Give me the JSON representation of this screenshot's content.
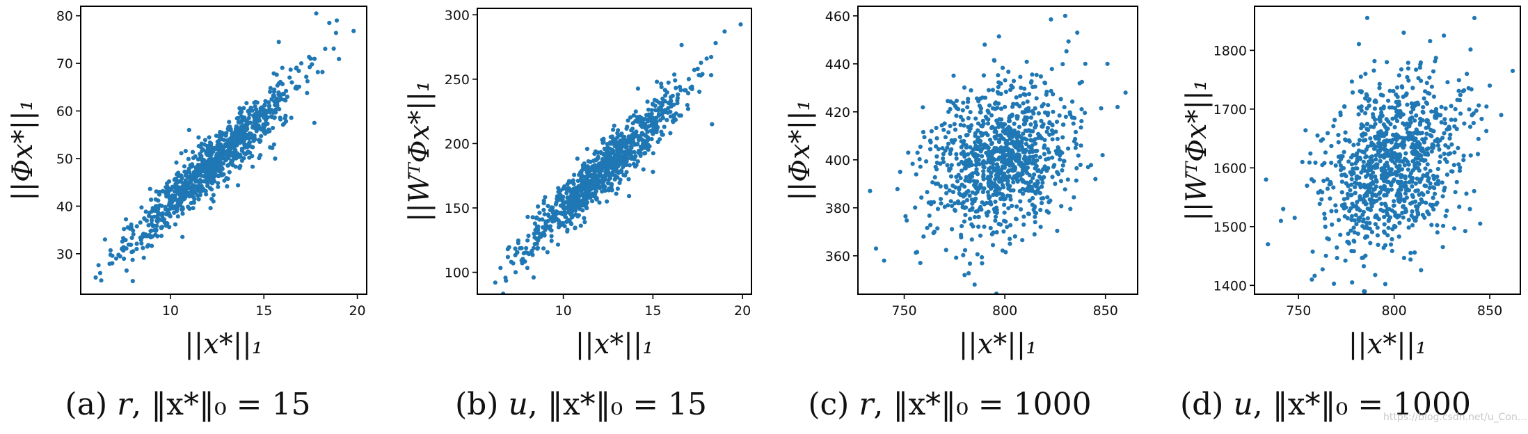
{
  "colors": {
    "point": "#1f77b4",
    "axis": "#000000",
    "text": "#111111"
  },
  "captions": [
    {
      "letter": "(a)",
      "var": "r",
      "norm": "‖x*‖₀ = 15"
    },
    {
      "letter": "(b)",
      "var": "u",
      "norm": "‖x*‖₀ = 15"
    },
    {
      "letter": "(c)",
      "var": "r",
      "norm": "‖x*‖₀ = 1000"
    },
    {
      "letter": "(d)",
      "var": "u",
      "norm": "‖x*‖₀ = 1000"
    }
  ],
  "watermark": "https://blog.csdn.net/u_Con...",
  "chart_data": [
    {
      "type": "scatter",
      "title": "",
      "xlabel": "||x*||₁",
      "ylabel": "||Φx*||₁",
      "xlim": [
        5.2,
        20.5
      ],
      "ylim": [
        21.5,
        82
      ],
      "xticks": [
        10,
        15,
        20
      ],
      "yticks": [
        30,
        40,
        50,
        60,
        70,
        80
      ],
      "grid": false,
      "n_points": 1000,
      "trend": {
        "x": [
          6,
          10,
          15,
          20
        ],
        "y": [
          26,
          41,
          59,
          77
        ]
      },
      "points": [
        [
          6.0,
          25.0
        ],
        [
          6.3,
          24.4
        ],
        [
          6.5,
          33.0
        ],
        [
          7.1,
          29.0
        ],
        [
          7.4,
          31.0
        ],
        [
          8.0,
          30.5
        ],
        [
          8.5,
          33.5
        ],
        [
          9.0,
          37.0
        ],
        [
          9.5,
          35.5
        ],
        [
          10.0,
          41.0
        ],
        [
          10.5,
          43.0
        ],
        [
          11.0,
          45.0
        ],
        [
          11.5,
          48.0
        ],
        [
          12.0,
          47.0
        ],
        [
          12.5,
          51.0
        ],
        [
          13.0,
          50.0
        ],
        [
          13.5,
          55.0
        ],
        [
          14.0,
          57.0
        ],
        [
          14.5,
          58.0
        ],
        [
          15.0,
          60.0
        ],
        [
          15.5,
          63.0
        ],
        [
          15.8,
          74.5
        ],
        [
          16.5,
          66.0
        ],
        [
          17.0,
          70.0
        ],
        [
          17.5,
          71.0
        ],
        [
          17.8,
          80.5
        ],
        [
          18.5,
          78.5
        ],
        [
          18.9,
          79.0
        ],
        [
          19.8,
          76.8
        ],
        [
          17.7,
          57.5
        ],
        [
          11.0,
          56.0
        ],
        [
          15.6,
          50.0
        ]
      ]
    },
    {
      "type": "scatter",
      "title": "",
      "xlabel": "||x*||₁",
      "ylabel": "||WᵀΦx*||₁",
      "xlim": [
        5.2,
        20.5
      ],
      "ylim": [
        83,
        305
      ],
      "xticks": [
        10,
        15,
        20
      ],
      "yticks": [
        100,
        150,
        200,
        250,
        300
      ],
      "grid": false,
      "n_points": 1000,
      "trend": {
        "x": [
          6,
          10,
          15,
          20
        ],
        "y": [
          96,
          150,
          215,
          282
        ]
      },
      "points": [
        [
          6.2,
          92.0
        ],
        [
          6.8,
          93.5
        ],
        [
          6.9,
          118.0
        ],
        [
          7.2,
          107.0
        ],
        [
          8.0,
          115.0
        ],
        [
          8.5,
          126.0
        ],
        [
          9.0,
          135.0
        ],
        [
          9.5,
          140.0
        ],
        [
          10.0,
          150.0
        ],
        [
          10.5,
          158.0
        ],
        [
          11.0,
          163.0
        ],
        [
          11.5,
          170.0
        ],
        [
          12.0,
          178.0
        ],
        [
          12.5,
          182.0
        ],
        [
          13.0,
          192.0
        ],
        [
          13.5,
          197.0
        ],
        [
          14.0,
          206.0
        ],
        [
          14.5,
          215.0
        ],
        [
          15.0,
          220.0
        ],
        [
          15.5,
          226.0
        ],
        [
          16.0,
          236.0
        ],
        [
          16.5,
          244.0
        ],
        [
          17.0,
          250.0
        ],
        [
          17.5,
          258.0
        ],
        [
          18.0,
          266.0
        ],
        [
          18.5,
          278.0
        ],
        [
          19.0,
          287.0
        ],
        [
          19.9,
          292.5
        ],
        [
          16.6,
          276.5
        ],
        [
          18.3,
          215.0
        ],
        [
          15.0,
          178.0
        ]
      ]
    },
    {
      "type": "scatter",
      "title": "",
      "xlabel": "||x*||₁",
      "ylabel": "||Φx*||₁",
      "xlim": [
        727,
        866
      ],
      "ylim": [
        344,
        464
      ],
      "xticks": [
        750,
        800,
        850
      ],
      "yticks": [
        360,
        380,
        400,
        420,
        440,
        460
      ],
      "grid": false,
      "n_points": 1000,
      "center": [
        798,
        400
      ],
      "spread": [
        18,
        16
      ],
      "points": [
        [
          733.0,
          387.0
        ],
        [
          736.0,
          363.0
        ],
        [
          740.0,
          358.0
        ],
        [
          748.0,
          395.0
        ],
        [
          752.0,
          403.0
        ],
        [
          758.0,
          357.0
        ],
        [
          765.0,
          370.0
        ],
        [
          772.0,
          420.0
        ],
        [
          780.0,
          352.0
        ],
        [
          785.0,
          348.0
        ],
        [
          790.0,
          448.0
        ],
        [
          795.0,
          400.0
        ],
        [
          800.0,
          405.0
        ],
        [
          805.0,
          397.0
        ],
        [
          810.0,
          415.0
        ],
        [
          815.0,
          378.0
        ],
        [
          820.0,
          432.0
        ],
        [
          825.0,
          390.0
        ],
        [
          830.0,
          460.0
        ],
        [
          836.0,
          453.0
        ],
        [
          840.0,
          440.0
        ],
        [
          845.0,
          392.0
        ],
        [
          851.0,
          440.0
        ],
        [
          856.0,
          422.0
        ],
        [
          860.0,
          428.0
        ]
      ]
    },
    {
      "type": "scatter",
      "title": "",
      "xlabel": "||x*||₁",
      "ylabel": "||WᵀΦx*||₁",
      "xlim": [
        727,
        866
      ],
      "ylim": [
        1385,
        1875
      ],
      "xticks": [
        750,
        800,
        850
      ],
      "yticks": [
        1400,
        1500,
        1600,
        1700,
        1800
      ],
      "grid": false,
      "n_points": 1000,
      "center": [
        798,
        1600
      ],
      "spread": [
        18,
        72
      ],
      "points": [
        [
          733.0,
          1580.0
        ],
        [
          734.0,
          1470.0
        ],
        [
          742.0,
          1530.0
        ],
        [
          748.0,
          1515.0
        ],
        [
          752.0,
          1610.0
        ],
        [
          757.0,
          1410.0
        ],
        [
          765.0,
          1480.0
        ],
        [
          772.0,
          1690.0
        ],
        [
          778.0,
          1405.0
        ],
        [
          785.0,
          1760.0
        ],
        [
          790.0,
          1600.0
        ],
        [
          795.0,
          1640.0
        ],
        [
          800.0,
          1580.0
        ],
        [
          805.0,
          1830.0
        ],
        [
          810.0,
          1700.0
        ],
        [
          815.0,
          1520.0
        ],
        [
          820.0,
          1640.0
        ],
        [
          826.0,
          1825.0
        ],
        [
          832.0,
          1700.0
        ],
        [
          838.0,
          1760.0
        ],
        [
          842.0,
          1855.0
        ],
        [
          845.0,
          1505.0
        ],
        [
          850.0,
          1740.0
        ],
        [
          856.0,
          1690.0
        ],
        [
          862.0,
          1765.0
        ]
      ]
    }
  ]
}
